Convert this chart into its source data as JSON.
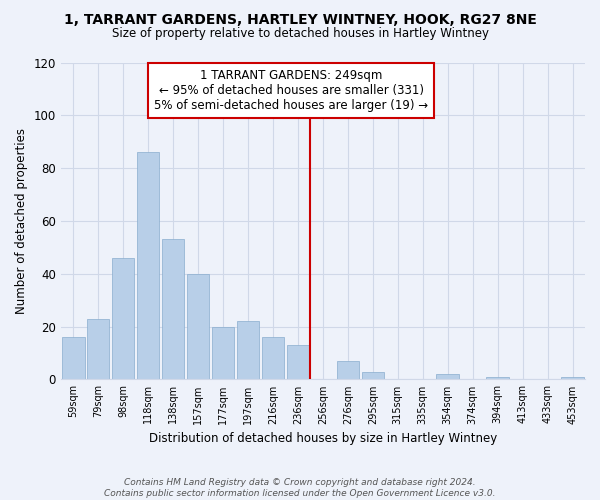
{
  "title": "1, TARRANT GARDENS, HARTLEY WINTNEY, HOOK, RG27 8NE",
  "subtitle": "Size of property relative to detached houses in Hartley Wintney",
  "xlabel": "Distribution of detached houses by size in Hartley Wintney",
  "ylabel": "Number of detached properties",
  "bar_labels": [
    "59sqm",
    "79sqm",
    "98sqm",
    "118sqm",
    "138sqm",
    "157sqm",
    "177sqm",
    "197sqm",
    "216sqm",
    "236sqm",
    "256sqm",
    "276sqm",
    "295sqm",
    "315sqm",
    "335sqm",
    "354sqm",
    "374sqm",
    "394sqm",
    "413sqm",
    "433sqm",
    "453sqm"
  ],
  "bar_values": [
    16,
    23,
    46,
    86,
    53,
    40,
    20,
    22,
    16,
    13,
    0,
    7,
    3,
    0,
    0,
    2,
    0,
    1,
    0,
    0,
    1
  ],
  "bar_color": "#b8cfe8",
  "annotation_line1": "1 TARRANT GARDENS: 249sqm",
  "annotation_line2": "← 95% of detached houses are smaller (331)",
  "annotation_line3": "5% of semi-detached houses are larger (19) →",
  "annotation_box_color": "#ffffff",
  "annotation_box_edge_color": "#cc0000",
  "vline_color": "#cc0000",
  "ylim": [
    0,
    120
  ],
  "yticks": [
    0,
    20,
    40,
    60,
    80,
    100,
    120
  ],
  "footnote_line1": "Contains HM Land Registry data © Crown copyright and database right 2024.",
  "footnote_line2": "Contains public sector information licensed under the Open Government Licence v3.0.",
  "bg_color": "#eef2fa",
  "grid_color": "#d0d8e8"
}
